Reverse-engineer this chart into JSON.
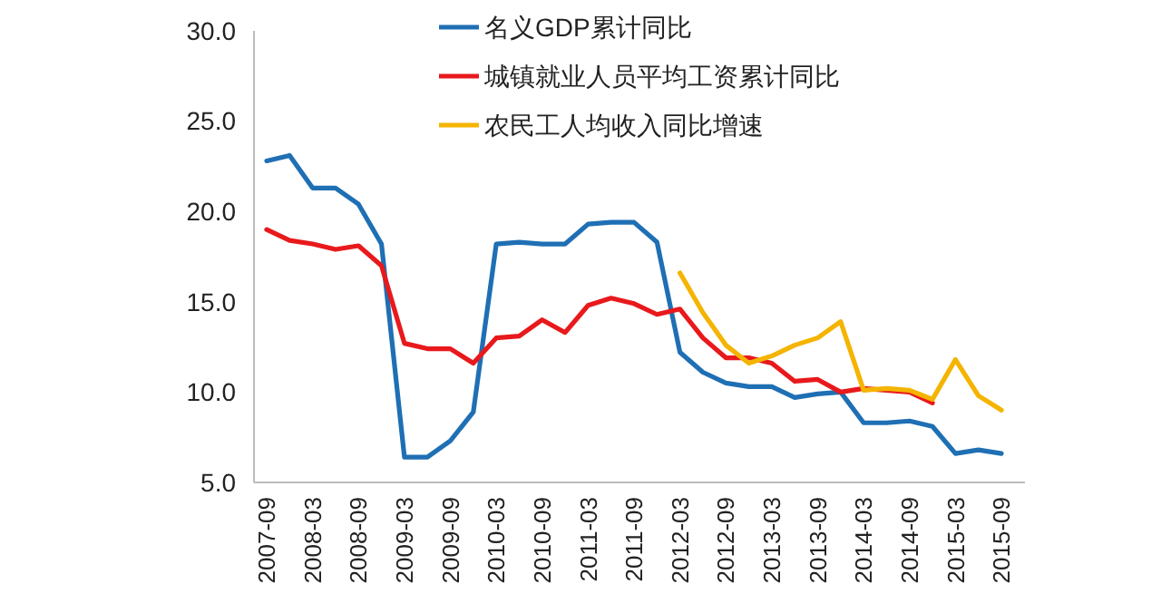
{
  "chart_data": {
    "type": "line",
    "categories": [
      "2007-09",
      null,
      "2008-03",
      null,
      "2008-09",
      null,
      "2009-03",
      null,
      "2009-09",
      null,
      "2010-03",
      null,
      "2010-09",
      null,
      "2011-03",
      null,
      "2011-09",
      null,
      "2012-03",
      null,
      "2012-09",
      null,
      "2013-03",
      null,
      "2013-09",
      null,
      "2014-03",
      null,
      "2014-09",
      null,
      "2015-03",
      null,
      "2015-09"
    ],
    "series": [
      {
        "name": "名义GDP累计同比",
        "color": "#1f6fb4",
        "values": [
          22.8,
          23.1,
          21.3,
          21.3,
          20.4,
          18.2,
          6.4,
          6.4,
          7.3,
          8.9,
          18.2,
          18.3,
          18.2,
          18.2,
          19.3,
          19.4,
          19.4,
          18.3,
          12.2,
          11.1,
          10.5,
          10.3,
          10.3,
          9.7,
          9.9,
          10.0,
          8.3,
          8.3,
          8.4,
          8.1,
          6.6,
          6.8,
          6.6
        ]
      },
      {
        "name": "城镇就业人员平均工资累计同比",
        "color": "#e8191c",
        "values": [
          19.0,
          18.4,
          18.2,
          17.9,
          18.1,
          17.0,
          12.7,
          12.4,
          12.4,
          11.6,
          13.0,
          13.1,
          14.0,
          13.3,
          14.8,
          15.2,
          14.9,
          14.3,
          14.6,
          13.0,
          11.9,
          11.9,
          11.6,
          10.6,
          10.7,
          10.0,
          10.2,
          10.1,
          10.0,
          9.4,
          null,
          null,
          null
        ]
      },
      {
        "name": "农民工人均收入同比增速",
        "color": "#f4b400",
        "values": [
          null,
          null,
          null,
          null,
          null,
          null,
          null,
          null,
          null,
          null,
          null,
          null,
          null,
          null,
          null,
          null,
          null,
          null,
          16.6,
          14.4,
          12.6,
          11.6,
          12.0,
          12.6,
          13.0,
          13.9,
          10.1,
          10.2,
          10.1,
          9.6,
          11.8,
          9.8,
          9.0
        ]
      }
    ],
    "ylim": [
      5,
      30
    ],
    "yticks": [
      {
        "value": 5,
        "label": "5.0"
      },
      {
        "value": 10,
        "label": "10.0"
      },
      {
        "value": 15,
        "label": "15.0"
      },
      {
        "value": 20,
        "label": "20.0"
      },
      {
        "value": 25,
        "label": "25.0"
      },
      {
        "value": 30,
        "label": "30.0"
      }
    ],
    "legend": "top",
    "grid": false
  }
}
